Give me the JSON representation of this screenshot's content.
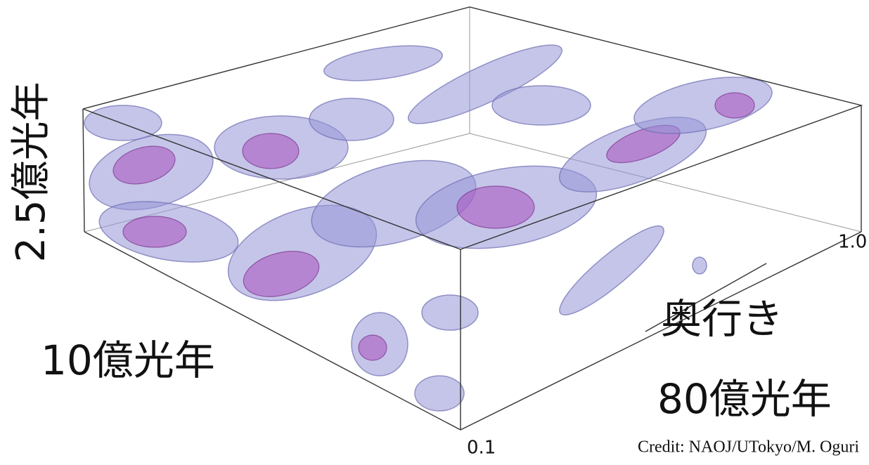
{
  "labels": {
    "height": "2.5億光年",
    "width": "10億光年",
    "depth_title": "奥行き",
    "depth": "80億光年",
    "depth_near": "0.1",
    "depth_far": "1.0"
  },
  "credit": "Credit: NAOJ/UTokyo/M. Oguri"
}
